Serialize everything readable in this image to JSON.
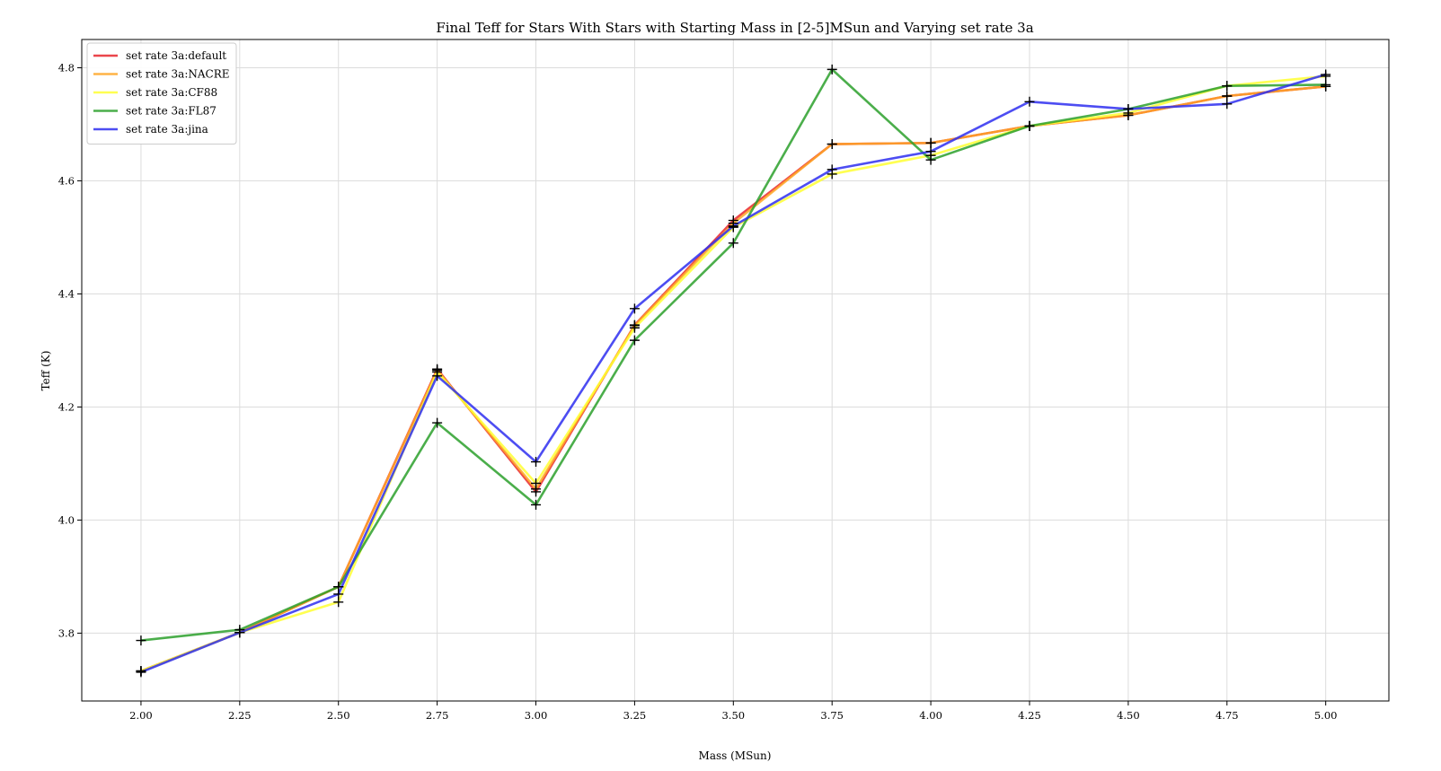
{
  "chart_data": {
    "type": "line",
    "title": "Final Teff for Stars With Stars with Starting Mass in [2-5]MSun and Varying set rate 3a",
    "xlabel": "Mass (MSun)",
    "ylabel": "Teff (K)",
    "xlim": [
      1.85,
      5.16
    ],
    "ylim": [
      3.68,
      4.85
    ],
    "xticks": [
      2.0,
      2.25,
      2.5,
      2.75,
      3.0,
      3.25,
      3.5,
      3.75,
      4.0,
      4.25,
      4.5,
      4.75,
      5.0
    ],
    "xtick_labels": [
      "2.00",
      "2.25",
      "2.50",
      "2.75",
      "3.00",
      "3.25",
      "3.50",
      "3.75",
      "4.00",
      "4.25",
      "4.50",
      "4.75",
      "5.00"
    ],
    "yticks": [
      3.8,
      4.0,
      4.2,
      4.4,
      4.6,
      4.8
    ],
    "ytick_labels": [
      "3.8",
      "4.0",
      "4.2",
      "4.4",
      "4.6",
      "4.8"
    ],
    "grid": true,
    "legend_position": "top-left",
    "marker": "+",
    "marker_color": "#000000",
    "x": [
      2.0,
      2.25,
      2.5,
      2.75,
      3.0,
      3.25,
      3.5,
      3.75,
      4.0,
      4.25,
      4.5,
      4.75,
      5.0
    ],
    "series": [
      {
        "name": "set rate 3a:default",
        "color": "#e8262b",
        "values": [
          3.733,
          3.801,
          3.882,
          4.267,
          4.05,
          4.345,
          4.53,
          4.665,
          4.667,
          4.697,
          4.716,
          4.75,
          4.767
        ]
      },
      {
        "name": "set rate 3a:NACRE",
        "color": "#ffa726",
        "values": [
          3.733,
          3.801,
          3.882,
          4.265,
          4.055,
          4.344,
          4.525,
          4.665,
          4.667,
          4.697,
          4.716,
          4.75,
          4.767
        ]
      },
      {
        "name": "set rate 3a:CF88",
        "color": "#ffff33",
        "values": [
          3.733,
          3.801,
          3.855,
          4.262,
          4.065,
          4.34,
          4.518,
          4.612,
          4.645,
          4.697,
          4.72,
          4.768,
          4.785
        ]
      },
      {
        "name": "set rate 3a:FL87",
        "color": "#2ca02c",
        "values": [
          3.787,
          3.806,
          3.882,
          4.172,
          4.027,
          4.318,
          4.49,
          4.797,
          4.637,
          4.697,
          4.727,
          4.768,
          4.77
        ]
      },
      {
        "name": "set rate 3a:jina",
        "color": "#2e2ef0",
        "values": [
          3.731,
          3.801,
          3.869,
          4.255,
          4.103,
          4.374,
          4.52,
          4.62,
          4.652,
          4.74,
          4.727,
          4.736,
          4.788
        ]
      }
    ]
  }
}
